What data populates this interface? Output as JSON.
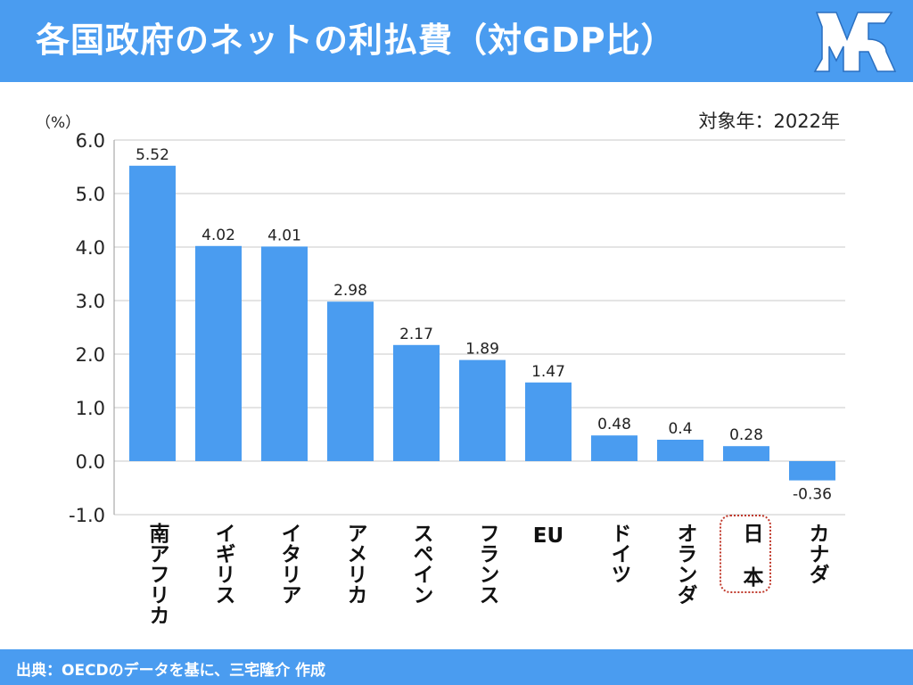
{
  "header": {
    "title": "各国政府のネットの利払費（対GDP比）"
  },
  "logo": {
    "icon": "mr-logo-icon"
  },
  "chart_data": {
    "type": "bar",
    "unit_label": "（%）",
    "note": "対象年：2022年",
    "categories": [
      "南アフリカ",
      "イギリス",
      "イタリア",
      "アメリカ",
      "スペイン",
      "フランス",
      "EU",
      "ドイツ",
      "オランダ",
      "日本",
      "カナダ"
    ],
    "category_display": [
      "南アフリカ",
      "イギリス",
      "イタリア",
      "アメリカ",
      "スペイン",
      "フランス",
      "EU",
      "ドイツ",
      "オランダ",
      "日 本",
      "カナダ"
    ],
    "values": [
      5.52,
      4.02,
      4.01,
      2.98,
      2.17,
      1.89,
      1.47,
      0.48,
      0.4,
      0.28,
      -0.36
    ],
    "value_labels": [
      "5.52",
      "4.02",
      "4.01",
      "2.98",
      "2.17",
      "1.89",
      "1.47",
      "0.48",
      "0.4",
      "0.28",
      "-0.36"
    ],
    "ylim": [
      -1.0,
      6.0
    ],
    "yticks": [
      "-1.0",
      "0.0",
      "1.0",
      "2.0",
      "3.0",
      "4.0",
      "5.0",
      "6.0"
    ],
    "grid": true,
    "highlight_category": "日本",
    "bar_color": "#4a9cf0"
  },
  "footer": {
    "source": "出典：OECDのデータを基に、三宅隆介 作成"
  }
}
